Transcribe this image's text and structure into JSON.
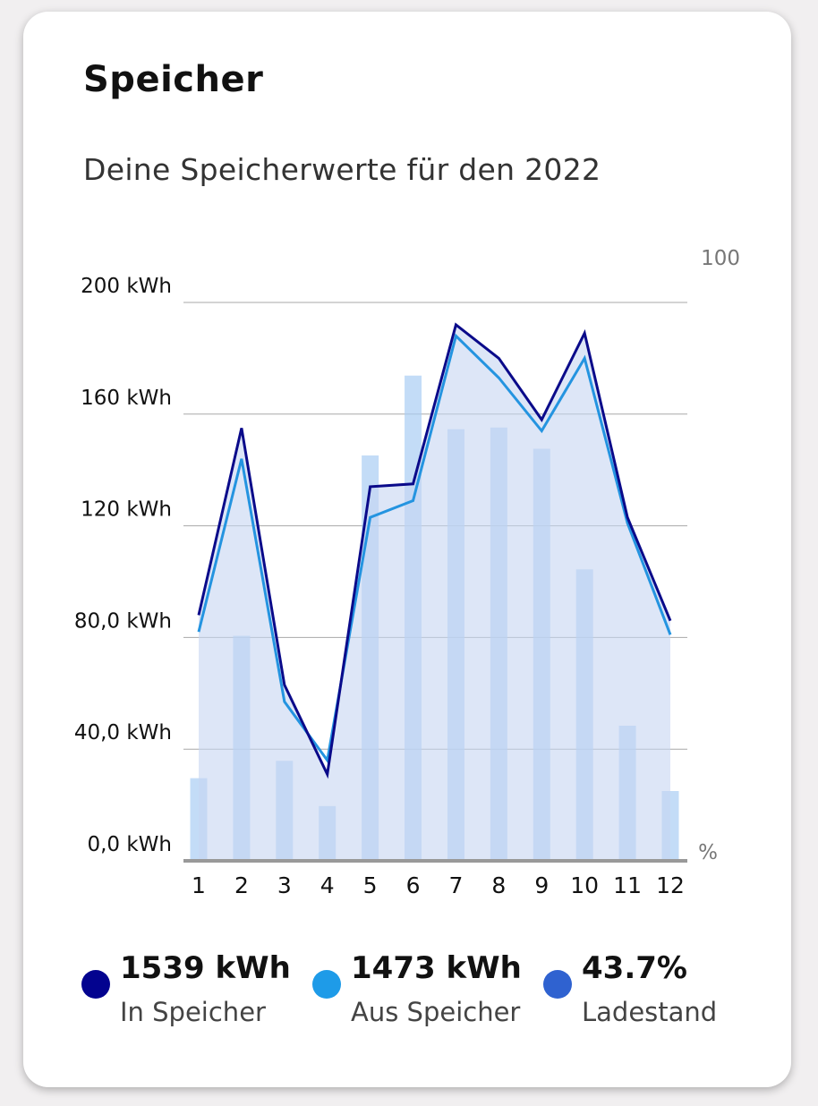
{
  "card": {
    "title": "Speicher",
    "subtitle": "Deine Speicherwerte für den 2022"
  },
  "chart_data": {
    "type": "line",
    "categories": [
      "1",
      "2",
      "3",
      "4",
      "5",
      "6",
      "7",
      "8",
      "9",
      "10",
      "11",
      "12"
    ],
    "y_left": {
      "min": 0,
      "max": 200,
      "ticks": [
        {
          "value": 0,
          "label": "0,0 kWh"
        },
        {
          "value": 40,
          "label": "40,0 kWh"
        },
        {
          "value": 80,
          "label": "80,0 kWh"
        },
        {
          "value": 120,
          "label": "120 kWh"
        },
        {
          "value": 160,
          "label": "160 kWh"
        },
        {
          "value": 200,
          "label": "200 kWh"
        }
      ]
    },
    "y_right": {
      "min": 0,
      "max": 100,
      "top_label": "100",
      "unit_label": "%"
    },
    "grid": true,
    "series": [
      {
        "name": "In Speicher",
        "type": "line",
        "axis": "left",
        "color": "#0a0a8a",
        "values": [
          88,
          155,
          63,
          31,
          134,
          135,
          192,
          180,
          158,
          189,
          123,
          86
        ]
      },
      {
        "name": "Aus Speicher",
        "type": "line",
        "axis": "left",
        "color": "#2494e0",
        "values": [
          82,
          144,
          57,
          36,
          123,
          129,
          188,
          173,
          154,
          180,
          121,
          81
        ]
      },
      {
        "name": "Ladestand",
        "type": "bar",
        "axis": "right",
        "color": "#a9cdf3",
        "values": [
          14.8,
          40.3,
          17.9,
          9.8,
          72.6,
          86.9,
          77.3,
          77.6,
          73.8,
          52.2,
          24.2,
          12.5
        ]
      }
    ]
  },
  "legend": [
    {
      "value": "1539 kWh",
      "label": "In Speicher",
      "color": "#03038f"
    },
    {
      "value": "1473 kWh",
      "label": "Aus Speicher",
      "color": "#1e9be8"
    },
    {
      "value": "43.7%",
      "label": "Ladestand",
      "color": "#2f62d0"
    }
  ]
}
